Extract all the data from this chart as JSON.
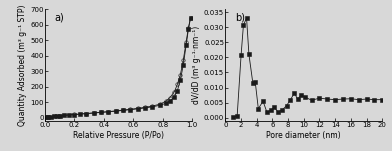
{
  "plot_a": {
    "label": "a)",
    "xlabel": "Relative Pressure (P/Po)",
    "ylabel": "Quantity Adsorbed (m³ g⁻¹ STP)",
    "xlim": [
      0.0,
      1.0
    ],
    "ylim": [
      -20,
      700
    ],
    "xticks": [
      0.0,
      0.2,
      0.4,
      0.6,
      0.8,
      1.0
    ],
    "yticks": [
      0,
      100,
      200,
      300,
      400,
      500,
      600,
      700
    ],
    "adsorption_x": [
      0.01,
      0.02,
      0.04,
      0.06,
      0.08,
      0.1,
      0.13,
      0.16,
      0.2,
      0.24,
      0.28,
      0.33,
      0.38,
      0.43,
      0.48,
      0.53,
      0.58,
      0.63,
      0.68,
      0.73,
      0.78,
      0.82,
      0.85,
      0.88,
      0.9,
      0.92,
      0.94,
      0.96,
      0.975,
      0.99
    ],
    "adsorption_y": [
      3,
      5,
      7,
      9,
      11,
      13,
      15,
      17,
      20,
      23,
      26,
      30,
      34,
      38,
      42,
      47,
      52,
      57,
      63,
      70,
      80,
      92,
      108,
      135,
      175,
      240,
      340,
      470,
      570,
      645
    ],
    "desorption_x": [
      0.99,
      0.975,
      0.96,
      0.94,
      0.92,
      0.9,
      0.88,
      0.85,
      0.82,
      0.78,
      0.73,
      0.68,
      0.63,
      0.58,
      0.53,
      0.48,
      0.43,
      0.38,
      0.33,
      0.28,
      0.2,
      0.1,
      0.01
    ],
    "desorption_y": [
      645,
      580,
      490,
      370,
      275,
      215,
      168,
      130,
      105,
      87,
      75,
      67,
      60,
      54,
      49,
      44,
      39,
      35,
      31,
      27,
      21,
      14,
      3
    ]
  },
  "plot_b": {
    "label": "b)",
    "xlabel": "Pore diameter (nm)",
    "ylabel": "dV/dD (m³ g⁻¹·nm⁻¹)",
    "xlim": [
      0,
      20
    ],
    "ylim": [
      -0.001,
      0.036
    ],
    "xticks": [
      0,
      2,
      4,
      6,
      8,
      10,
      12,
      14,
      16,
      18,
      20
    ],
    "yticks": [
      0.0,
      0.005,
      0.01,
      0.015,
      0.02,
      0.025,
      0.03,
      0.035
    ],
    "x": [
      1.0,
      1.5,
      2.0,
      2.3,
      2.7,
      3.0,
      3.5,
      3.8,
      4.2,
      4.8,
      5.3,
      5.8,
      6.2,
      6.7,
      7.2,
      7.8,
      8.3,
      8.8,
      9.2,
      9.7,
      10.2,
      11.0,
      12.0,
      13.0,
      14.0,
      15.0,
      16.0,
      17.0,
      18.0,
      19.0,
      20.0
    ],
    "y": [
      0.0002,
      0.0006,
      0.0207,
      0.0307,
      0.033,
      0.021,
      0.0115,
      0.012,
      0.003,
      0.0055,
      0.0018,
      0.0025,
      0.0035,
      0.002,
      0.0025,
      0.004,
      0.006,
      0.0082,
      0.0062,
      0.0075,
      0.0068,
      0.0058,
      0.0065,
      0.0062,
      0.006,
      0.0062,
      0.0063,
      0.006,
      0.0062,
      0.006,
      0.006
    ]
  },
  "line_color": "#1a1a1a",
  "marker": "s",
  "markersize": 2.5,
  "open_marker": "o",
  "open_markersize": 2.5,
  "fontsize_label": 5.5,
  "fontsize_tick": 5.0,
  "fontsize_annot": 7,
  "bg_color": "#d8d8d8"
}
